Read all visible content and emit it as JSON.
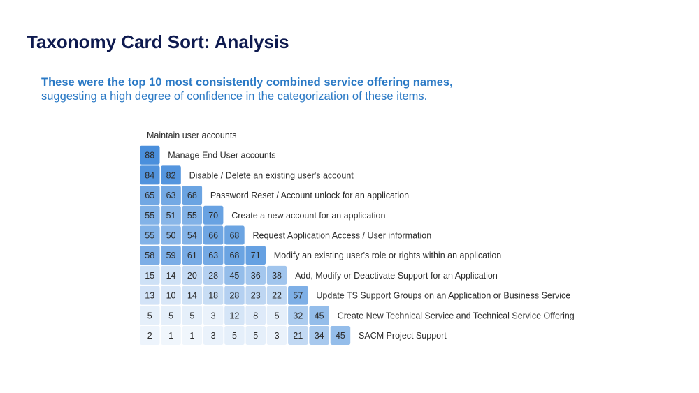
{
  "slide": {
    "title": "Taxonomy Card Sort: Analysis",
    "subtitle_line1": "These were the top 10 most consistently combined service offering names,",
    "subtitle_line2": "suggesting a high degree of confidence in the categorization of these items."
  },
  "colors": {
    "title": "#0e1a4f",
    "subtitle": "#2a79c5",
    "scale_low": "#f4f8fd",
    "scale_high": "#4a8fdc",
    "text": "#2b2b2b"
  },
  "chart_data": {
    "type": "heatmap",
    "title": "",
    "xlabel": "",
    "ylabel": "",
    "value_range": [
      0,
      100
    ],
    "labels": [
      "Maintain user accounts",
      "Manage End User accounts",
      "Disable / Delete an existing user's account",
      "Password Reset / Account unlock for an application",
      "Create a new account for an application",
      "Request Application Access / User information",
      "Modify an existing user's role or rights within an application",
      "Add, Modify or Deactivate Support for an Application",
      "Update TS Support Groups on an Application or Business Service",
      "Create New Technical Service and Technical Service Offering",
      "SACM Project Support"
    ],
    "matrix": [
      [],
      [
        88
      ],
      [
        84,
        82
      ],
      [
        65,
        63,
        68
      ],
      [
        55,
        51,
        55,
        70
      ],
      [
        55,
        50,
        54,
        66,
        68
      ],
      [
        58,
        59,
        61,
        63,
        68,
        71
      ],
      [
        15,
        14,
        20,
        28,
        45,
        36,
        38
      ],
      [
        13,
        10,
        14,
        18,
        28,
        23,
        22,
        57
      ],
      [
        5,
        5,
        5,
        3,
        12,
        8,
        5,
        32,
        45
      ],
      [
        2,
        1,
        1,
        3,
        5,
        5,
        3,
        21,
        34,
        45
      ]
    ]
  }
}
